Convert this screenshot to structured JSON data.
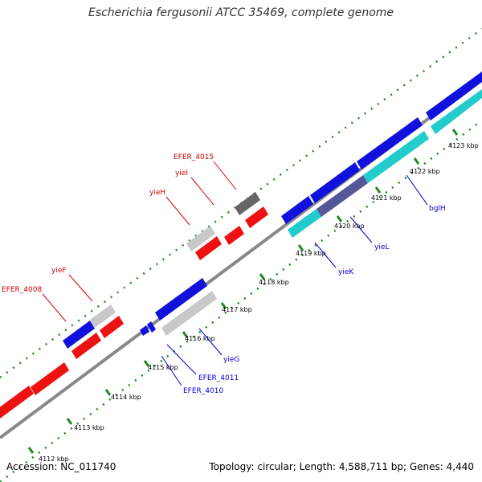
{
  "title": "Escherichia fergusonii ATCC 35469, complete genome",
  "footer": {
    "accession": "Accession: NC_011740",
    "topology": "Topology: circular; Length: 4,588,711 bp; Genes: 4,440"
  },
  "colors": {
    "forward_gene": "#ee1111",
    "reverse_gene": "#1111dd",
    "forward_label": "#cc0000",
    "reverse_label": "#0000cc",
    "backbone": "#888888",
    "tick": "#228822",
    "teal": "#22cccc",
    "slate": "#555599",
    "gray": "#c8c8c8",
    "dark_gray": "#666666"
  },
  "ticks": [
    "4112 kbp",
    "4113 kbp",
    "4114 kbp",
    "4115 kbp",
    "4116 kbp",
    "4117 kbp",
    "4118 kbp",
    "4119 kbp",
    "4120 kbp",
    "4121 kbp",
    "4122 kbp",
    "4123 kbp"
  ],
  "forward_labels": [
    "EFER_4008",
    "yieF",
    "yieH",
    "yieI",
    "EFER_4015"
  ],
  "reverse_labels": [
    "EFER_4010",
    "EFER_4011",
    "yieG",
    "yieK",
    "yieL",
    "bglH"
  ]
}
